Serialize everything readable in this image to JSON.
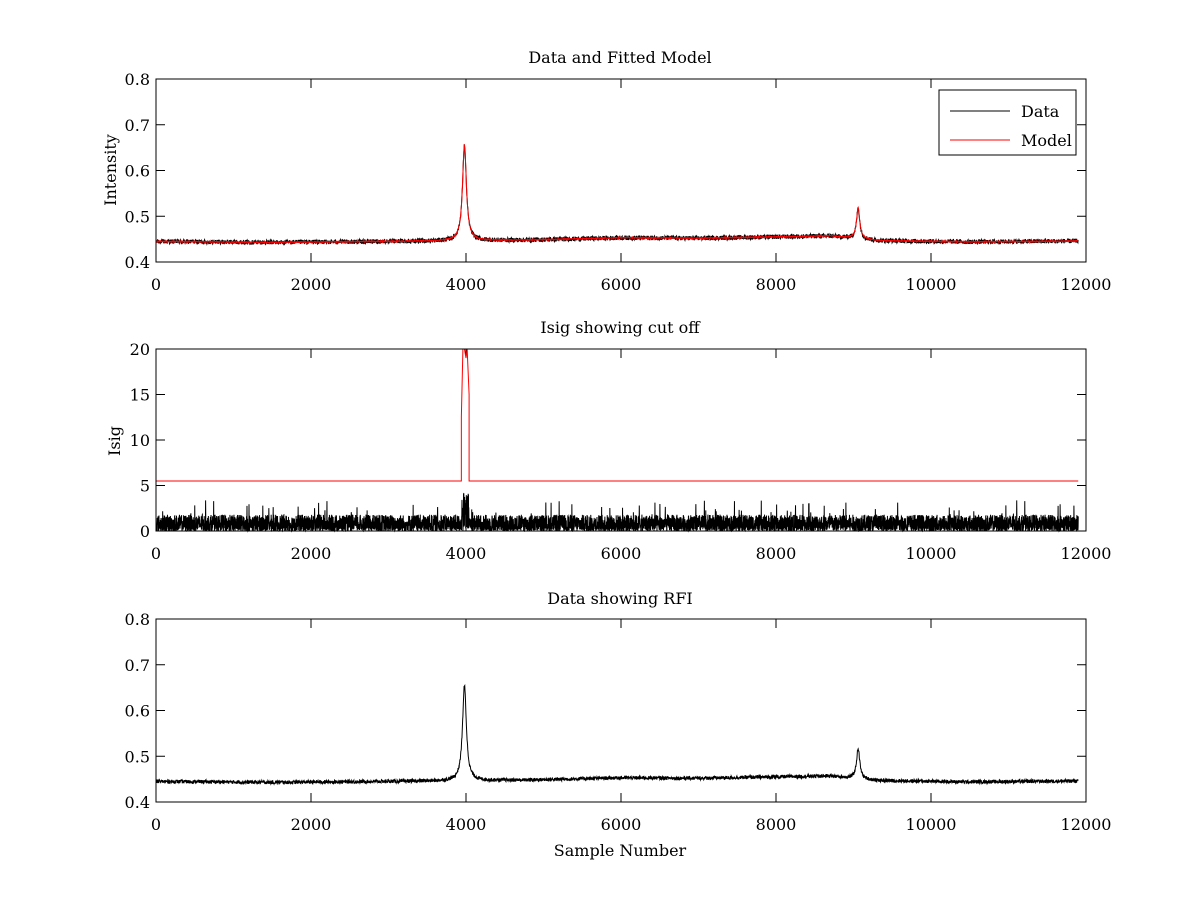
{
  "chart_data": [
    {
      "type": "line",
      "title": "Data and Fitted Model",
      "xlabel": "",
      "ylabel": "Intensity",
      "xlim": [
        0,
        12000
      ],
      "ylim": [
        0.4,
        0.8
      ],
      "xticks": [
        0,
        2000,
        4000,
        6000,
        8000,
        10000,
        12000
      ],
      "yticks": [
        0.4,
        0.5,
        0.6,
        0.7,
        0.8
      ],
      "grid": false,
      "legend": {
        "position": "top-right",
        "entries": [
          {
            "label": "Data",
            "color": "#000000"
          },
          {
            "label": "Model",
            "color": "#ff0000"
          }
        ]
      },
      "x_extent": [
        0,
        11900
      ],
      "series": [
        {
          "name": "Data",
          "color": "#000000",
          "baseline": [
            [
              0,
              0.445
            ],
            [
              1500,
              0.443
            ],
            [
              3000,
              0.445
            ],
            [
              4800,
              0.448
            ],
            [
              6000,
              0.453
            ],
            [
              7000,
              0.452
            ],
            [
              8000,
              0.455
            ],
            [
              8700,
              0.457
            ],
            [
              9300,
              0.447
            ],
            [
              10500,
              0.444
            ],
            [
              11900,
              0.446
            ]
          ],
          "noise_amplitude": 0.005,
          "peaks": [
            {
              "center": 3980,
              "height": 0.208,
              "width": 30
            },
            {
              "center": 9060,
              "height": 0.066,
              "width": 25
            }
          ]
        },
        {
          "name": "Model",
          "color": "#ff0000",
          "baseline": [
            [
              0,
              0.445
            ],
            [
              1500,
              0.443
            ],
            [
              3000,
              0.445
            ],
            [
              4800,
              0.448
            ],
            [
              6000,
              0.453
            ],
            [
              7000,
              0.452
            ],
            [
              8000,
              0.455
            ],
            [
              8700,
              0.457
            ],
            [
              9300,
              0.447
            ],
            [
              10500,
              0.444
            ],
            [
              11900,
              0.446
            ]
          ],
          "noise_amplitude": 0.001,
          "peaks": [
            {
              "center": 3980,
              "height": 0.21,
              "width": 30
            },
            {
              "center": 9060,
              "height": 0.068,
              "width": 25
            }
          ]
        }
      ]
    },
    {
      "type": "line",
      "title": "Isig showing cut off",
      "xlabel": "",
      "ylabel": "Isig",
      "xlim": [
        0,
        12000
      ],
      "ylim": [
        0,
        20
      ],
      "xticks": [
        0,
        2000,
        4000,
        6000,
        8000,
        10000,
        12000
      ],
      "yticks": [
        0,
        5,
        10,
        15,
        20
      ],
      "grid": false,
      "x_extent": [
        0,
        11900
      ],
      "series": [
        {
          "color": "#000000",
          "kind": "noise",
          "typical_max": 1.8,
          "occasional_max": 3.4,
          "spike_region": {
            "start": 3940,
            "end": 4040,
            "max": 4.2
          }
        },
        {
          "color": "#ff0000",
          "kind": "threshold",
          "level": 5.5,
          "spike": {
            "start": 3940,
            "end": 4040,
            "top": 20
          }
        }
      ]
    },
    {
      "type": "line",
      "title": "Data showing RFI",
      "xlabel": "Sample Number",
      "ylabel": "",
      "xlim": [
        0,
        12000
      ],
      "ylim": [
        0.4,
        0.8
      ],
      "xticks": [
        0,
        2000,
        4000,
        6000,
        8000,
        10000,
        12000
      ],
      "yticks": [
        0.4,
        0.5,
        0.6,
        0.7,
        0.8
      ],
      "grid": false,
      "x_extent": [
        0,
        11900
      ],
      "series": [
        {
          "color": "#000000",
          "baseline": [
            [
              0,
              0.445
            ],
            [
              1500,
              0.443
            ],
            [
              3000,
              0.445
            ],
            [
              4800,
              0.448
            ],
            [
              6000,
              0.453
            ],
            [
              7000,
              0.452
            ],
            [
              8000,
              0.455
            ],
            [
              8700,
              0.457
            ],
            [
              9300,
              0.447
            ],
            [
              10500,
              0.444
            ],
            [
              11900,
              0.446
            ]
          ],
          "noise_amplitude": 0.004,
          "peaks": [
            {
              "center": 3980,
              "height": 0.208,
              "width": 30
            },
            {
              "center": 9060,
              "height": 0.066,
              "width": 25
            }
          ]
        }
      ]
    }
  ]
}
